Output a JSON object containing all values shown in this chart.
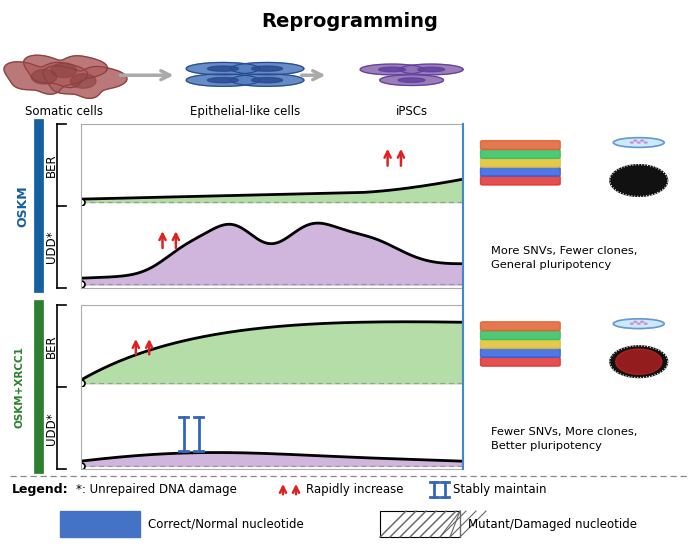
{
  "title": "Reprogramming",
  "cell_labels": [
    "Somatic cells",
    "Epithelial-like cells",
    "iPSCs"
  ],
  "oskm_label": "OSKM",
  "oskm_xrcc1_label": "OSKM+XRCC1",
  "ber_label": "BER",
  "udd_label": "UDD*",
  "oskm_result": "More SNVs, Fewer clones,\nGeneral pluripotency",
  "oskm_xrcc1_result": "Fewer SNVs, More clones,\nBetter pluripotency",
  "legend_star": "*: Unrepaired DNA damage",
  "legend_increase": "Rapidly increase",
  "legend_maintain": "Stably maintain",
  "legend_correct": "Correct/Normal nucleotide",
  "legend_mutant": "Mutant/Damaged nucleotide",
  "legend_label": "Legend:",
  "green_fill": "#a8d898",
  "purple_fill": "#c8a8d8",
  "blue_border_color": "#1560a0",
  "green_border_color": "#2d8030",
  "red_arrow_color": "#dd2222",
  "blue_arrow_color": "#3366bb",
  "dashed_line_color": "#888888",
  "bg_color": "#ffffff",
  "correct_nuc_color": "#4472c4",
  "somatic_color": "#b06060",
  "somatic_dark": "#8a4040",
  "epithelial_color": "#5580c0",
  "epithelial_dark": "#2a4a90",
  "ipsc_color": "#9070b0",
  "ipsc_dark": "#6040a0",
  "bracket_color": "#444444",
  "curve_lw": 2.0,
  "open_circle_size": 5
}
